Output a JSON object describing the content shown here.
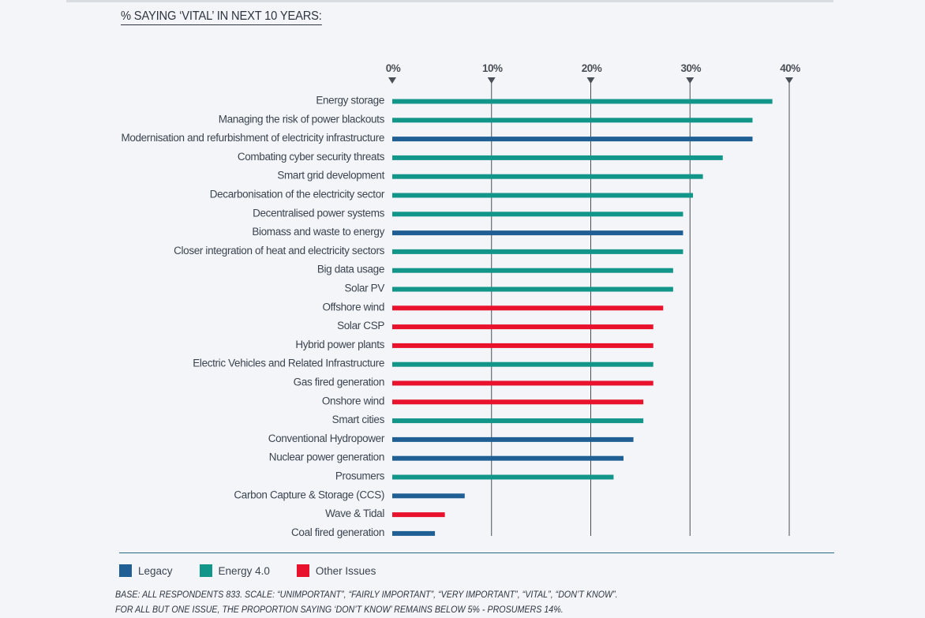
{
  "title": "% SAYING ‘VITAL’ IN NEXT 10 YEARS:",
  "colors": {
    "Legacy": "#1f5f93",
    "Energy 4.0": "#13968a",
    "Other Issues": "#e8122d",
    "grid": "#4a4f57",
    "tick_marker": "#4a4f57",
    "label_text": "#3b4450",
    "baseline": "#2a6b80"
  },
  "legend": [
    {
      "label": "Legacy",
      "color": "#1f5f93"
    },
    {
      "label": "Energy 4.0",
      "color": "#13968a"
    },
    {
      "label": "Other Issues",
      "color": "#e8122d"
    }
  ],
  "footnote": {
    "line1": "BASE: ALL RESPONDENTS 833.  SCALE: “UNIMPORTANT”, “FAIRLY IMPORTANT”, “VERY IMPORTANT”, “VITAL”, “DON’T KNOW”.",
    "line2": "FOR ALL BUT ONE ISSUE, THE PROPORTION SAYING ‘DON’T KNOW’ REMAINS BELOW 5% - PROSUMERS 14%."
  },
  "chart_data": {
    "type": "bar",
    "orientation": "horizontal",
    "title": "% SAYING ‘VITAL’ IN NEXT 10 YEARS:",
    "xlim": [
      0,
      40
    ],
    "x_ticks": [
      "0%",
      "10%",
      "20%",
      "30%",
      "40%"
    ],
    "x_tick_values": [
      0,
      10,
      20,
      30,
      40
    ],
    "grid": true,
    "legend_position": "bottom-left",
    "categories": [
      "Energy storage",
      "Managing the risk of power blackouts",
      "Modernisation and refurbishment of electricity infrastructure",
      "Combating cyber security threats",
      "Smart grid development",
      "Decarbonisation of the electricity sector",
      "Decentralised power systems",
      "Biomass and waste to energy",
      "Closer integration of heat and electricity sectors",
      "Big data usage",
      "Solar PV",
      "Offshore wind",
      "Solar CSP",
      "Hybrid power plants",
      "Electric Vehicles and Related Infrastructure",
      "Gas fired generation",
      "Onshore wind",
      "Smart cities",
      "Conventional Hydropower",
      "Nuclear power generation",
      "Prosumers",
      "Carbon Capture & Storage (CCS)",
      "Wave & Tidal",
      "Coal fired generation"
    ],
    "values": [
      38.3,
      36.3,
      36.3,
      33.3,
      31.3,
      30.3,
      29.3,
      29.3,
      29.3,
      28.3,
      28.3,
      27.3,
      26.3,
      26.3,
      26.3,
      26.3,
      25.3,
      25.3,
      24.3,
      23.3,
      22.3,
      7.3,
      5.3,
      4.3
    ],
    "groups": [
      "Energy 4.0",
      "Energy 4.0",
      "Legacy",
      "Energy 4.0",
      "Energy 4.0",
      "Energy 4.0",
      "Energy 4.0",
      "Legacy",
      "Energy 4.0",
      "Energy 4.0",
      "Energy 4.0",
      "Other Issues",
      "Other Issues",
      "Other Issues",
      "Energy 4.0",
      "Other Issues",
      "Other Issues",
      "Energy 4.0",
      "Legacy",
      "Legacy",
      "Energy 4.0",
      "Legacy",
      "Other Issues",
      "Legacy"
    ]
  }
}
